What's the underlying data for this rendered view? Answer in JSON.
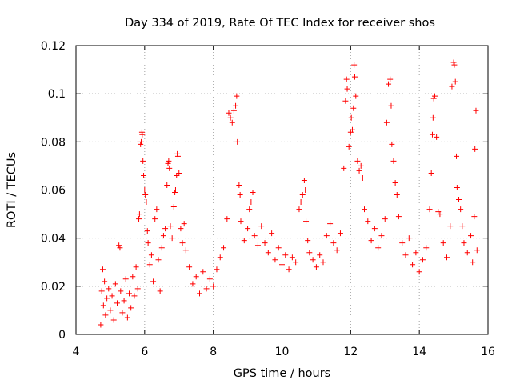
{
  "chart_data": {
    "type": "scatter",
    "title": "Day 334 of 2019, Rate Of TEC Index for receiver shos",
    "xlabel": "GPS time / hours",
    "ylabel": "ROTI / TECUs",
    "xlim": [
      4,
      16
    ],
    "ylim": [
      0,
      0.12
    ],
    "x_ticks": [
      4,
      6,
      8,
      10,
      12,
      14,
      16
    ],
    "x_tick_labels": [
      "4",
      "6",
      "8",
      "10",
      "12",
      "14",
      "16"
    ],
    "y_ticks": [
      0,
      0.02,
      0.04,
      0.06,
      0.08,
      0.1,
      0.12
    ],
    "y_tick_labels": [
      "0",
      "0.02",
      "0.04",
      "0.06",
      "0.08",
      "0.1",
      "0.12"
    ],
    "grid": true,
    "marker": "plus",
    "color": "#ff0000",
    "series": [
      {
        "name": "ROTI",
        "points": [
          [
            4.72,
            0.004
          ],
          [
            4.75,
            0.018
          ],
          [
            4.78,
            0.027
          ],
          [
            4.8,
            0.012
          ],
          [
            4.83,
            0.022
          ],
          [
            4.86,
            0.008
          ],
          [
            4.9,
            0.015
          ],
          [
            4.95,
            0.019
          ],
          [
            5.0,
            0.01
          ],
          [
            5.05,
            0.016
          ],
          [
            5.1,
            0.006
          ],
          [
            5.15,
            0.021
          ],
          [
            5.2,
            0.013
          ],
          [
            5.25,
            0.037
          ],
          [
            5.28,
            0.036
          ],
          [
            5.3,
            0.018
          ],
          [
            5.35,
            0.009
          ],
          [
            5.4,
            0.014
          ],
          [
            5.45,
            0.023
          ],
          [
            5.5,
            0.007
          ],
          [
            5.55,
            0.017
          ],
          [
            5.6,
            0.011
          ],
          [
            5.65,
            0.024
          ],
          [
            5.7,
            0.016
          ],
          [
            5.75,
            0.028
          ],
          [
            5.8,
            0.019
          ],
          [
            5.83,
            0.048
          ],
          [
            5.85,
            0.05
          ],
          [
            5.88,
            0.079
          ],
          [
            5.9,
            0.08
          ],
          [
            5.92,
            0.084
          ],
          [
            5.93,
            0.083
          ],
          [
            5.95,
            0.072
          ],
          [
            5.97,
            0.066
          ],
          [
            6.0,
            0.06
          ],
          [
            6.02,
            0.058
          ],
          [
            6.05,
            0.055
          ],
          [
            6.08,
            0.043
          ],
          [
            6.1,
            0.038
          ],
          [
            6.15,
            0.029
          ],
          [
            6.2,
            0.033
          ],
          [
            6.25,
            0.022
          ],
          [
            6.3,
            0.048
          ],
          [
            6.35,
            0.052
          ],
          [
            6.4,
            0.031
          ],
          [
            6.45,
            0.018
          ],
          [
            6.5,
            0.036
          ],
          [
            6.55,
            0.041
          ],
          [
            6.6,
            0.044
          ],
          [
            6.65,
            0.062
          ],
          [
            6.68,
            0.071
          ],
          [
            6.7,
            0.072
          ],
          [
            6.72,
            0.069
          ],
          [
            6.75,
            0.045
          ],
          [
            6.8,
            0.04
          ],
          [
            6.85,
            0.053
          ],
          [
            6.88,
            0.059
          ],
          [
            6.9,
            0.06
          ],
          [
            6.93,
            0.066
          ],
          [
            6.95,
            0.075
          ],
          [
            6.97,
            0.074
          ],
          [
            7.0,
            0.067
          ],
          [
            7.05,
            0.044
          ],
          [
            7.1,
            0.038
          ],
          [
            7.15,
            0.046
          ],
          [
            7.2,
            0.035
          ],
          [
            7.3,
            0.028
          ],
          [
            7.4,
            0.021
          ],
          [
            7.5,
            0.024
          ],
          [
            7.6,
            0.017
          ],
          [
            7.7,
            0.026
          ],
          [
            7.8,
            0.019
          ],
          [
            7.9,
            0.023
          ],
          [
            8.0,
            0.02
          ],
          [
            8.1,
            0.027
          ],
          [
            8.2,
            0.032
          ],
          [
            8.3,
            0.036
          ],
          [
            8.4,
            0.048
          ],
          [
            8.45,
            0.092
          ],
          [
            8.5,
            0.09
          ],
          [
            8.55,
            0.088
          ],
          [
            8.6,
            0.093
          ],
          [
            8.65,
            0.095
          ],
          [
            8.68,
            0.099
          ],
          [
            8.7,
            0.08
          ],
          [
            8.75,
            0.062
          ],
          [
            8.78,
            0.058
          ],
          [
            8.8,
            0.047
          ],
          [
            8.9,
            0.039
          ],
          [
            9.0,
            0.044
          ],
          [
            9.05,
            0.052
          ],
          [
            9.1,
            0.055
          ],
          [
            9.15,
            0.059
          ],
          [
            9.2,
            0.041
          ],
          [
            9.3,
            0.037
          ],
          [
            9.4,
            0.045
          ],
          [
            9.5,
            0.038
          ],
          [
            9.6,
            0.034
          ],
          [
            9.7,
            0.042
          ],
          [
            9.8,
            0.031
          ],
          [
            9.9,
            0.036
          ],
          [
            10.0,
            0.029
          ],
          [
            10.1,
            0.033
          ],
          [
            10.2,
            0.027
          ],
          [
            10.3,
            0.032
          ],
          [
            10.4,
            0.03
          ],
          [
            10.5,
            0.052
          ],
          [
            10.55,
            0.055
          ],
          [
            10.6,
            0.058
          ],
          [
            10.65,
            0.064
          ],
          [
            10.68,
            0.06
          ],
          [
            10.7,
            0.047
          ],
          [
            10.75,
            0.039
          ],
          [
            10.8,
            0.034
          ],
          [
            10.9,
            0.031
          ],
          [
            11.0,
            0.028
          ],
          [
            11.1,
            0.033
          ],
          [
            11.2,
            0.03
          ],
          [
            11.3,
            0.041
          ],
          [
            11.4,
            0.046
          ],
          [
            11.5,
            0.038
          ],
          [
            11.6,
            0.035
          ],
          [
            11.7,
            0.042
          ],
          [
            11.8,
            0.069
          ],
          [
            11.85,
            0.097
          ],
          [
            11.88,
            0.106
          ],
          [
            11.9,
            0.102
          ],
          [
            11.95,
            0.078
          ],
          [
            12.0,
            0.084
          ],
          [
            12.02,
            0.09
          ],
          [
            12.05,
            0.085
          ],
          [
            12.08,
            0.094
          ],
          [
            12.1,
            0.112
          ],
          [
            12.12,
            0.107
          ],
          [
            12.15,
            0.099
          ],
          [
            12.2,
            0.072
          ],
          [
            12.25,
            0.068
          ],
          [
            12.3,
            0.07
          ],
          [
            12.35,
            0.065
          ],
          [
            12.4,
            0.052
          ],
          [
            12.5,
            0.047
          ],
          [
            12.6,
            0.039
          ],
          [
            12.7,
            0.044
          ],
          [
            12.8,
            0.036
          ],
          [
            12.9,
            0.041
          ],
          [
            13.0,
            0.048
          ],
          [
            13.05,
            0.088
          ],
          [
            13.1,
            0.104
          ],
          [
            13.15,
            0.106
          ],
          [
            13.18,
            0.095
          ],
          [
            13.2,
            0.079
          ],
          [
            13.25,
            0.072
          ],
          [
            13.3,
            0.063
          ],
          [
            13.35,
            0.058
          ],
          [
            13.4,
            0.049
          ],
          [
            13.5,
            0.038
          ],
          [
            13.6,
            0.033
          ],
          [
            13.7,
            0.04
          ],
          [
            13.8,
            0.029
          ],
          [
            13.9,
            0.034
          ],
          [
            14.0,
            0.026
          ],
          [
            14.1,
            0.031
          ],
          [
            14.2,
            0.036
          ],
          [
            14.3,
            0.052
          ],
          [
            14.35,
            0.067
          ],
          [
            14.38,
            0.083
          ],
          [
            14.4,
            0.09
          ],
          [
            14.42,
            0.098
          ],
          [
            14.45,
            0.099
          ],
          [
            14.5,
            0.082
          ],
          [
            14.55,
            0.051
          ],
          [
            14.6,
            0.05
          ],
          [
            14.7,
            0.038
          ],
          [
            14.8,
            0.032
          ],
          [
            14.9,
            0.045
          ],
          [
            14.95,
            0.103
          ],
          [
            15.0,
            0.113
          ],
          [
            15.02,
            0.112
          ],
          [
            15.05,
            0.105
          ],
          [
            15.08,
            0.074
          ],
          [
            15.1,
            0.061
          ],
          [
            15.15,
            0.056
          ],
          [
            15.2,
            0.052
          ],
          [
            15.25,
            0.045
          ],
          [
            15.3,
            0.038
          ],
          [
            15.4,
            0.034
          ],
          [
            15.5,
            0.041
          ],
          [
            15.55,
            0.03
          ],
          [
            15.6,
            0.049
          ],
          [
            15.62,
            0.077
          ],
          [
            15.65,
            0.093
          ],
          [
            15.68,
            0.035
          ]
        ]
      }
    ]
  }
}
